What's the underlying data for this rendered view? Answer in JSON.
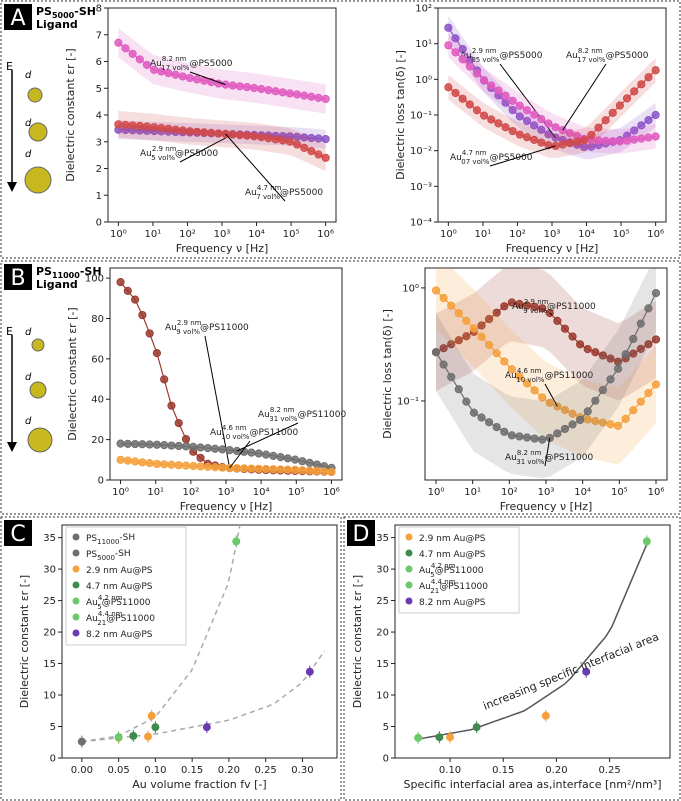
{
  "colors": {
    "pink": "#e05bc0",
    "red": "#d14a4a",
    "purple": "#8a55c8",
    "brown": "#9b3a2e",
    "gray": "#6e6e6e",
    "orange": "#f5a03c",
    "darkgreen": "#3f8a4f",
    "green": "#6cc86c",
    "violet": "#6a3ab0",
    "axis": "#222222"
  },
  "panels": {
    "A": {
      "letter": "A",
      "ligand_main": "PS",
      "ligand_sub": "5000",
      "ligand_suffix": "-SH",
      "ligand_word": "Ligand"
    },
    "B": {
      "letter": "B",
      "ligand_main": "PS",
      "ligand_sub": "11000",
      "ligand_suffix": "-SH",
      "ligand_word": "Ligand"
    },
    "C": {
      "letter": "C"
    },
    "D": {
      "letter": "D"
    },
    "icon_letters": {
      "E": "E",
      "d": "d"
    }
  },
  "chart_data": [
    {
      "id": "A1",
      "type": "line",
      "title": "",
      "xlabel": "Frequency ν [Hz]",
      "ylabel": "Dielectric constant εr [-]",
      "xscale": "log",
      "xlim": [
        1,
        1000000
      ],
      "ylim": [
        0,
        8
      ],
      "xticks": [
        1,
        10,
        100,
        1000,
        10000,
        100000,
        1000000
      ],
      "xticklabels": [
        "10⁰",
        "10¹",
        "10²",
        "10³",
        "10⁴",
        "10⁵",
        "10⁶"
      ],
      "yticks": [
        0,
        1,
        2,
        3,
        4,
        5,
        6,
        7,
        8
      ],
      "series": [
        {
          "name": "Au 8.2 nm 17 vol% @PS5000",
          "label": "Au",
          "sup": "8.2 nm",
          "sub": "17 vol%",
          "suffix": "@PS5000",
          "color": "pink",
          "x": [
            1,
            10,
            100,
            1000,
            10000,
            100000,
            1000000
          ],
          "y": [
            6.7,
            5.7,
            5.4,
            5.15,
            5.0,
            4.8,
            4.6
          ],
          "band": 0.55
        },
        {
          "name": "Au 2.9 nm 5 vol% @PS5000",
          "label": "Au",
          "sup": "2.9 nm",
          "sub": "5 vol%",
          "suffix": "@PS5000",
          "color": "purple",
          "x": [
            1,
            10,
            100,
            1000,
            10000,
            100000,
            1000000
          ],
          "y": [
            3.45,
            3.4,
            3.35,
            3.3,
            3.25,
            3.2,
            3.1
          ],
          "band": 0.35
        },
        {
          "name": "Au 4.7 nm 7 vol% @PS5000",
          "label": "Au",
          "sup": "4.7 nm",
          "sub": "7 vol%",
          "suffix": "@PS5000",
          "color": "red",
          "x": [
            1,
            10,
            100,
            1000,
            10000,
            100000,
            1000000
          ],
          "y": [
            3.65,
            3.55,
            3.4,
            3.3,
            3.2,
            3.0,
            2.4
          ],
          "band": 0.5
        }
      ]
    },
    {
      "id": "A2",
      "type": "line",
      "title": "",
      "xlabel": "Frequency ν [Hz]",
      "ylabel": "Dielectric loss tan(δ) [-]",
      "xscale": "log",
      "yscale": "log",
      "xlim": [
        1,
        1000000
      ],
      "ylim": [
        0.0001,
        100
      ],
      "xticks": [
        1,
        10,
        100,
        1000,
        10000,
        100000,
        1000000
      ],
      "xticklabels": [
        "10⁰",
        "10¹",
        "10²",
        "10³",
        "10⁴",
        "10⁵",
        "10⁶"
      ],
      "yticks": [
        0.0001,
        0.001,
        0.01,
        0.1,
        1,
        10,
        100
      ],
      "yticklabels": [
        "10⁻⁴",
        "10⁻³",
        "10⁻²",
        "10⁻¹",
        "10⁰",
        "10¹",
        "10²"
      ],
      "series": [
        {
          "name": "Au 2.9 nm 5 vol% @PS5000",
          "label": "Au",
          "sup": "2.9 nm",
          "sub": "05 vol%",
          "suffix": "@PS5000",
          "color": "purple",
          "x": [
            1,
            10,
            100,
            1000,
            10000,
            100000,
            1000000
          ],
          "y": [
            28,
            1.0,
            0.1,
            0.025,
            0.012,
            0.02,
            0.1
          ]
        },
        {
          "name": "Au 8.2 nm 17 vol% @PS5000",
          "label": "Au",
          "sup": "8.2 nm",
          "sub": "17 vol%",
          "suffix": "@PS5000",
          "color": "pink",
          "x": [
            1,
            10,
            100,
            1000,
            10000,
            100000,
            1000000
          ],
          "y": [
            9,
            1.0,
            0.2,
            0.05,
            0.02,
            0.018,
            0.025
          ]
        },
        {
          "name": "Au 4.7 nm 7 vol% @PS5000",
          "label": "Au",
          "sup": "4.7 nm",
          "sub": "07 vol%",
          "suffix": "@PS5000",
          "color": "red",
          "x": [
            1,
            10,
            100,
            1000,
            10000,
            100000,
            1000000
          ],
          "y": [
            0.6,
            0.1,
            0.03,
            0.013,
            0.02,
            0.2,
            1.8
          ]
        }
      ]
    },
    {
      "id": "B1",
      "type": "line",
      "title": "",
      "xlabel": "Frequency ν [Hz]",
      "ylabel": "Dielectric constant εr [-]",
      "xscale": "log",
      "xlim": [
        1,
        1000000
      ],
      "ylim": [
        0,
        105
      ],
      "xticks": [
        1,
        10,
        100,
        1000,
        10000,
        100000,
        1000000
      ],
      "xticklabels": [
        "10⁰",
        "10¹",
        "10²",
        "10³",
        "10⁴",
        "10⁵",
        "10⁶"
      ],
      "yticks": [
        0,
        20,
        40,
        60,
        80,
        100
      ],
      "series": [
        {
          "name": "Au 2.9 nm 9 vol% @PS11000",
          "label": "Au",
          "sup": "2.9 nm",
          "sub": "9 vol%",
          "suffix": "@PS11000",
          "color": "brown",
          "x": [
            1,
            3,
            10,
            30,
            100,
            300,
            1000,
            10000,
            100000,
            1000000
          ],
          "y": [
            98,
            88,
            65,
            35,
            15,
            8,
            6,
            5,
            4.5,
            4
          ]
        },
        {
          "name": "Au 8.2 nm 31 vol% @PS11000",
          "label": "Au",
          "sup": "8.2 nm",
          "sub": "31 vol%",
          "suffix": "@PS11000",
          "color": "gray",
          "x": [
            1,
            10,
            100,
            1000,
            10000,
            100000,
            1000000
          ],
          "y": [
            18,
            17.5,
            16.5,
            15,
            13,
            10,
            6
          ]
        },
        {
          "name": "Au 4.6 nm 10 vol% @PS11000",
          "label": "Au",
          "sup": "4.6 nm",
          "sub": "10 vol%",
          "suffix": "@PS11000",
          "color": "orange",
          "x": [
            1,
            10,
            100,
            1000,
            10000,
            100000,
            1000000
          ],
          "y": [
            10,
            8,
            7,
            6,
            5.5,
            5,
            4
          ]
        }
      ]
    },
    {
      "id": "B2",
      "type": "line",
      "title": "",
      "xlabel": "Frequency ν [Hz]",
      "ylabel": "Dielectric loss tan(δ) [-]",
      "xscale": "log",
      "yscale": "log",
      "xlim": [
        1,
        1000000
      ],
      "ylim": [
        0.02,
        1.5
      ],
      "xticks": [
        1,
        10,
        100,
        1000,
        10000,
        100000,
        1000000
      ],
      "xticklabels": [
        "10⁰",
        "10¹",
        "10²",
        "10³",
        "10⁴",
        "10⁵",
        "10⁶"
      ],
      "yticks": [
        0.1,
        1
      ],
      "yticklabels": [
        "10⁻¹",
        "10⁰"
      ],
      "series": [
        {
          "name": "Au 2.9 nm 9 vol% @PS11000",
          "label": "Au",
          "sup": "2.9 nm",
          "sub": "9 vol%",
          "suffix": "@PS11000",
          "color": "brown",
          "x": [
            1,
            10,
            100,
            1000,
            10000,
            100000,
            1000000
          ],
          "y": [
            0.27,
            0.4,
            0.75,
            0.65,
            0.3,
            0.22,
            0.35
          ]
        },
        {
          "name": "Au 4.6 nm 10 vol% @PS11000",
          "label": "Au",
          "sup": "4.6 nm",
          "sub": "10 vol%",
          "suffix": "@PS11000",
          "color": "orange",
          "x": [
            1,
            10,
            100,
            1000,
            10000,
            100000,
            1000000
          ],
          "y": [
            0.95,
            0.45,
            0.2,
            0.1,
            0.07,
            0.06,
            0.14
          ]
        },
        {
          "name": "Au 8.2 nm 31 vol% @PS11000",
          "label": "Au",
          "sup": "8.2 nm",
          "sub": "31 vol%",
          "suffix": "@PS11000",
          "color": "gray",
          "x": [
            1,
            10,
            100,
            1000,
            10000,
            100000,
            1000000
          ],
          "y": [
            0.27,
            0.08,
            0.05,
            0.045,
            0.07,
            0.2,
            0.9
          ]
        }
      ]
    },
    {
      "id": "C",
      "type": "scatter",
      "title": "",
      "xlabel": "Au volume fraction fv [-]",
      "ylabel": "Dielectric constant εr [-]",
      "xlim": [
        -0.01,
        0.33
      ],
      "ylim": [
        0,
        37
      ],
      "xticks": [
        0.0,
        0.05,
        0.1,
        0.15,
        0.2,
        0.25,
        0.3
      ],
      "xticklabels": [
        "0.00",
        "0.05",
        "0.10",
        "0.15",
        "0.20",
        "0.25",
        "0.30"
      ],
      "yticks": [
        0,
        5,
        10,
        15,
        20,
        25,
        30,
        35
      ],
      "legend": [
        {
          "label": "PS",
          "sub": "11000",
          "suffix": "-SH",
          "color": "gray",
          "marker": "x"
        },
        {
          "label": "PS",
          "sub": "5000",
          "suffix": "-SH",
          "color": "gray",
          "marker": "+"
        },
        {
          "label": "2.9 nm Au@PS",
          "sup": "",
          "sub": "",
          "suffix": "",
          "color": "orange",
          "marker": "o"
        },
        {
          "label": "4.7 nm Au@PS",
          "sup": "",
          "sub": "",
          "suffix": "",
          "color": "darkgreen",
          "marker": "o"
        },
        {
          "label": "Au",
          "sup": "4.2 nm",
          "sub": "5",
          "suffix": "@PS11000",
          "color": "green",
          "marker": "v"
        },
        {
          "label": "Au",
          "sup": "4.4 nm",
          "sub": "21",
          "suffix": "@PS11000",
          "color": "green",
          "marker": "^"
        },
        {
          "label": "8.2 nm Au@PS",
          "sup": "",
          "sub": "",
          "suffix": "",
          "color": "violet",
          "marker": "o"
        }
      ],
      "points": [
        {
          "x": 0.0,
          "y": 2.6,
          "color": "gray"
        },
        {
          "x": 0.05,
          "y": 3.2,
          "color": "orange"
        },
        {
          "x": 0.09,
          "y": 3.4,
          "color": "orange"
        },
        {
          "x": 0.095,
          "y": 6.7,
          "color": "orange"
        },
        {
          "x": 0.07,
          "y": 3.5,
          "color": "darkgreen"
        },
        {
          "x": 0.1,
          "y": 4.9,
          "color": "darkgreen"
        },
        {
          "x": 0.05,
          "y": 3.3,
          "color": "green"
        },
        {
          "x": 0.21,
          "y": 34.4,
          "color": "green"
        },
        {
          "x": 0.17,
          "y": 4.9,
          "color": "violet"
        },
        {
          "x": 0.31,
          "y": 13.7,
          "color": "violet"
        }
      ],
      "fits": [
        {
          "x": [
            0.0,
            0.05,
            0.1,
            0.15,
            0.2,
            0.215
          ],
          "y": [
            2.6,
            3.5,
            6.5,
            14,
            28,
            37
          ]
        },
        {
          "x": [
            0.0,
            0.1,
            0.2,
            0.26,
            0.3,
            0.33
          ],
          "y": [
            2.6,
            3.8,
            6.0,
            8.5,
            12,
            17
          ]
        }
      ]
    },
    {
      "id": "D",
      "type": "scatter",
      "title": "",
      "xlabel": "Specific interfacial area as,interface [nm²/nm³]",
      "ylabel": "Dielectric constant εr [-]",
      "xlim": [
        0.06,
        0.295
      ],
      "ylim": [
        0,
        37
      ],
      "xticks": [
        0.1,
        0.15,
        0.2,
        0.25
      ],
      "xticklabels": [
        "0.10",
        "0.15",
        "0.20",
        "0.25"
      ],
      "yticks": [
        0,
        5,
        10,
        15,
        20,
        25,
        30,
        35
      ],
      "annotation": "increasing specific interfacial area",
      "legend": [
        {
          "label": "2.9 nm Au@PS",
          "color": "orange",
          "marker": "x"
        },
        {
          "label": "4.7 nm Au@PS",
          "color": "darkgreen",
          "marker": "x"
        },
        {
          "label": "Au",
          "sup": "4.2 nm",
          "sub": "5",
          "suffix": "@PS11000",
          "color": "green",
          "marker": "v"
        },
        {
          "label": "Au",
          "sup": "4.4 nm",
          "sub": "21",
          "suffix": "@PS11000",
          "color": "green",
          "marker": "^"
        },
        {
          "label": "8.2 nm Au@PS",
          "color": "violet",
          "marker": "x"
        }
      ],
      "points": [
        {
          "x": 0.07,
          "y": 3.2,
          "color": "green"
        },
        {
          "x": 0.09,
          "y": 3.3,
          "color": "darkgreen"
        },
        {
          "x": 0.1,
          "y": 3.3,
          "color": "orange"
        },
        {
          "x": 0.125,
          "y": 4.9,
          "color": "darkgreen"
        },
        {
          "x": 0.19,
          "y": 6.7,
          "color": "orange"
        },
        {
          "x": 0.228,
          "y": 13.7,
          "color": "violet"
        },
        {
          "x": 0.285,
          "y": 34.4,
          "color": "green"
        }
      ],
      "fits": [
        {
          "x": [
            0.07,
            0.12,
            0.17,
            0.21,
            0.25,
            0.285
          ],
          "y": [
            3.0,
            4.5,
            7.5,
            12,
            20,
            34
          ]
        }
      ]
    }
  ]
}
